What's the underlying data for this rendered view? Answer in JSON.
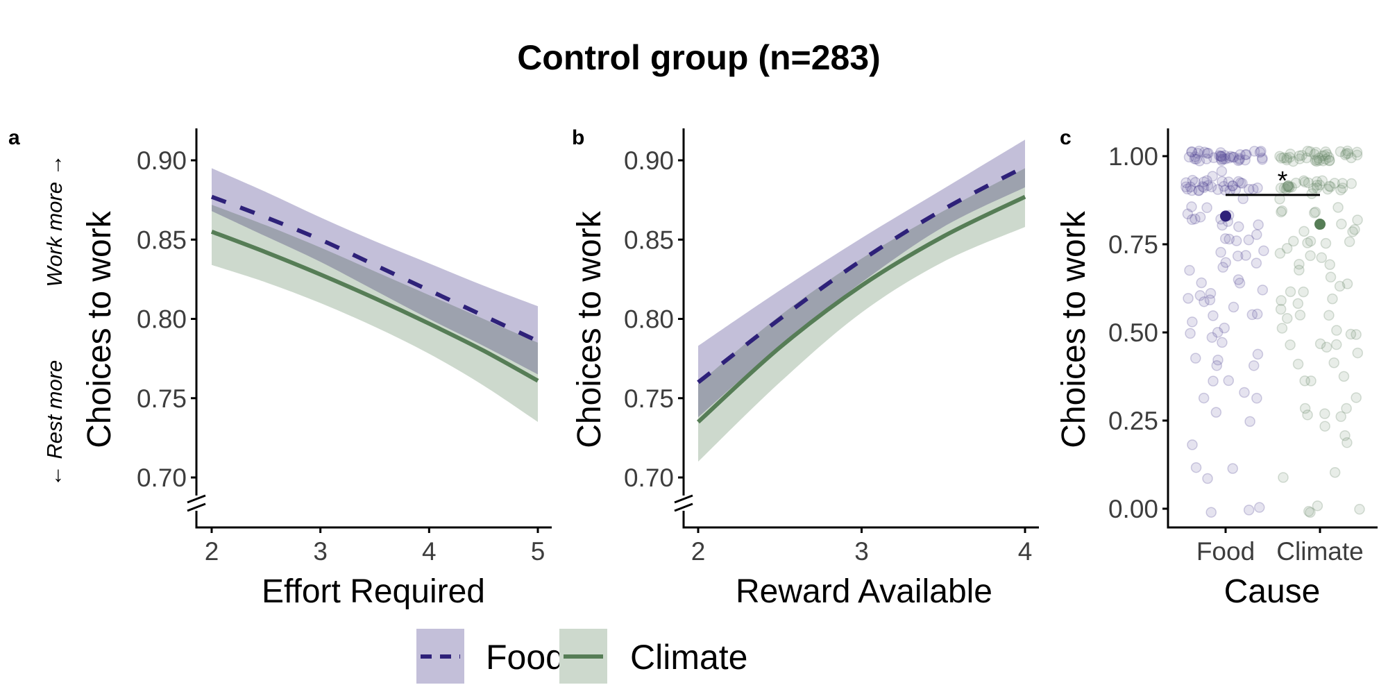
{
  "figure_title": "Control group (n=283)",
  "colors": {
    "food_line": "#2e2179",
    "food_ribbon": "#c3bfd9",
    "climate_line": "#567d56",
    "climate_ribbon": "#cdd9cd",
    "overlap": "#a3aab1",
    "axis": "#000000",
    "tick_text": "#3d3d3d"
  },
  "legend": {
    "placement": "bottom-center",
    "items": [
      {
        "label": "Food",
        "linetype": "dashed"
      },
      {
        "label": "Climate",
        "linetype": "solid"
      }
    ]
  },
  "chart_data": [
    {
      "panel": "a",
      "type": "line",
      "title": "",
      "xlabel": "Effort Required",
      "ylabel": "Choices to work",
      "direction_labels": {
        "low": "← Rest more",
        "high": "Work more →"
      },
      "xlim": [
        2,
        5
      ],
      "ylim": [
        0.68,
        0.92
      ],
      "x_ticks": [
        2,
        3,
        4,
        5
      ],
      "y_ticks": [
        0.7,
        0.75,
        0.8,
        0.85,
        0.9
      ],
      "y_tick_labels": [
        "0.70",
        "0.75",
        "0.80",
        "0.85",
        "0.90"
      ],
      "axis_break": true,
      "grid": false,
      "x": [
        2,
        2.5,
        3,
        3.5,
        4,
        4.5,
        5
      ],
      "series": [
        {
          "name": "Food",
          "values": [
            0.877,
            0.864,
            0.85,
            0.834,
            0.818,
            0.802,
            0.786
          ],
          "ci_lower": [
            0.868,
            0.852,
            0.836,
            0.818,
            0.8,
            0.783,
            0.765
          ],
          "ci_upper": [
            0.895,
            0.88,
            0.864,
            0.849,
            0.835,
            0.821,
            0.808
          ]
        },
        {
          "name": "Climate",
          "values": [
            0.855,
            0.842,
            0.828,
            0.813,
            0.797,
            0.78,
            0.761
          ],
          "ci_lower": [
            0.834,
            0.823,
            0.81,
            0.795,
            0.778,
            0.758,
            0.735
          ],
          "ci_upper": [
            0.872,
            0.859,
            0.845,
            0.83,
            0.815,
            0.8,
            0.785
          ]
        }
      ]
    },
    {
      "panel": "b",
      "type": "line",
      "title": "",
      "xlabel": "Reward Available",
      "ylabel": "Choices to work",
      "xlim": [
        2,
        4
      ],
      "ylim": [
        0.68,
        0.92
      ],
      "x_ticks": [
        2,
        3,
        4
      ],
      "y_ticks": [
        0.7,
        0.75,
        0.8,
        0.85,
        0.9
      ],
      "y_tick_labels": [
        "0.70",
        "0.75",
        "0.80",
        "0.85",
        "0.90"
      ],
      "axis_break": true,
      "grid": false,
      "x": [
        2,
        2.5,
        3,
        3.5,
        4
      ],
      "series": [
        {
          "name": "Food",
          "values": [
            0.76,
            0.8,
            0.837,
            0.869,
            0.896
          ],
          "ci_lower": [
            0.738,
            0.783,
            0.823,
            0.858,
            0.883
          ],
          "ci_upper": [
            0.783,
            0.818,
            0.851,
            0.882,
            0.913
          ]
        },
        {
          "name": "Climate",
          "values": [
            0.735,
            0.782,
            0.821,
            0.852,
            0.877
          ],
          "ci_lower": [
            0.71,
            0.76,
            0.804,
            0.836,
            0.858
          ],
          "ci_upper": [
            0.759,
            0.802,
            0.838,
            0.868,
            0.895
          ]
        }
      ]
    },
    {
      "panel": "c",
      "type": "scatter",
      "title": "",
      "xlabel": "Cause",
      "ylabel": "Choices to work",
      "categories": [
        "Food",
        "Climate"
      ],
      "ylim": [
        -0.05,
        1.05
      ],
      "y_ticks": [
        0.0,
        0.25,
        0.5,
        0.75,
        1.0
      ],
      "y_tick_labels": [
        "0.00",
        "0.25",
        "0.50",
        "0.75",
        "1.00"
      ],
      "grid": false,
      "means": [
        {
          "category": "Food",
          "value": 0.83
        },
        {
          "category": "Climate",
          "value": 0.807
        }
      ],
      "significance": {
        "from": "Food",
        "to": "Climate",
        "y": 0.89,
        "label": "*"
      },
      "points": {
        "Food": [
          1.0,
          1.0,
          1.0,
          1.0,
          1.0,
          1.0,
          1.0,
          1.0,
          1.0,
          1.0,
          1.0,
          1.0,
          1.0,
          1.0,
          1.0,
          1.0,
          1.0,
          1.0,
          1.0,
          1.0,
          1.0,
          1.0,
          1.0,
          1.0,
          1.0,
          1.0,
          1.0,
          1.0,
          1.0,
          1.0,
          1.0,
          1.0,
          1.0,
          1.0,
          1.0,
          1.0,
          1.0,
          1.0,
          1.0,
          1.0,
          0.917,
          0.917,
          0.917,
          0.917,
          0.917,
          0.917,
          0.917,
          0.917,
          0.917,
          0.917,
          0.917,
          0.917,
          0.917,
          0.917,
          0.917,
          0.917,
          0.917,
          0.917,
          0.917,
          0.917,
          0.917,
          0.917,
          0.917,
          0.917,
          0.917,
          0.917,
          0.917,
          0.917,
          0.917,
          0.917,
          0.95,
          0.93,
          0.875,
          0.858,
          0.845,
          0.833,
          0.833,
          0.833,
          0.825,
          0.82,
          0.817,
          0.81,
          0.8,
          0.8,
          0.79,
          0.78,
          0.76,
          0.75,
          0.75,
          0.75,
          0.74,
          0.73,
          0.72,
          0.71,
          0.7,
          0.69,
          0.68,
          0.67,
          0.66,
          0.65,
          0.64,
          0.625,
          0.62,
          0.6,
          0.6,
          0.58,
          0.58,
          0.575,
          0.56,
          0.55,
          0.55,
          0.54,
          0.52,
          0.5,
          0.5,
          0.49,
          0.47,
          0.45,
          0.43,
          0.42,
          0.42,
          0.42,
          0.37,
          0.37,
          0.33,
          0.31,
          0.3,
          0.26,
          0.25,
          0.19,
          0.11,
          0.1,
          0.09,
          0.0,
          0.0,
          -0.01
        ],
        "Climate": [
          1.0,
          1.0,
          1.0,
          1.0,
          1.0,
          1.0,
          1.0,
          1.0,
          1.0,
          1.0,
          1.0,
          1.0,
          1.0,
          1.0,
          1.0,
          1.0,
          1.0,
          1.0,
          1.0,
          1.0,
          1.0,
          1.0,
          1.0,
          1.0,
          1.0,
          1.0,
          1.0,
          1.0,
          1.0,
          1.0,
          1.0,
          1.0,
          1.0,
          1.0,
          1.0,
          1.0,
          1.0,
          1.0,
          0.917,
          0.917,
          0.917,
          0.917,
          0.917,
          0.917,
          0.917,
          0.917,
          0.917,
          0.917,
          0.917,
          0.917,
          0.917,
          0.917,
          0.917,
          0.917,
          0.917,
          0.917,
          0.917,
          0.917,
          0.917,
          0.917,
          0.917,
          0.917,
          0.917,
          0.917,
          0.917,
          0.917,
          0.9,
          0.88,
          0.86,
          0.845,
          0.84,
          0.833,
          0.833,
          0.82,
          0.81,
          0.8,
          0.79,
          0.78,
          0.76,
          0.75,
          0.75,
          0.75,
          0.75,
          0.74,
          0.73,
          0.72,
          0.71,
          0.7,
          0.68,
          0.67,
          0.66,
          0.65,
          0.63,
          0.62,
          0.61,
          0.6,
          0.6,
          0.58,
          0.58,
          0.56,
          0.55,
          0.54,
          0.51,
          0.5,
          0.5,
          0.49,
          0.48,
          0.47,
          0.46,
          0.45,
          0.43,
          0.42,
          0.42,
          0.38,
          0.37,
          0.35,
          0.33,
          0.29,
          0.27,
          0.27,
          0.26,
          0.26,
          0.24,
          0.2,
          0.18,
          0.1,
          0.08,
          0.01,
          0.01,
          0.0,
          0.0
        ]
      }
    }
  ]
}
